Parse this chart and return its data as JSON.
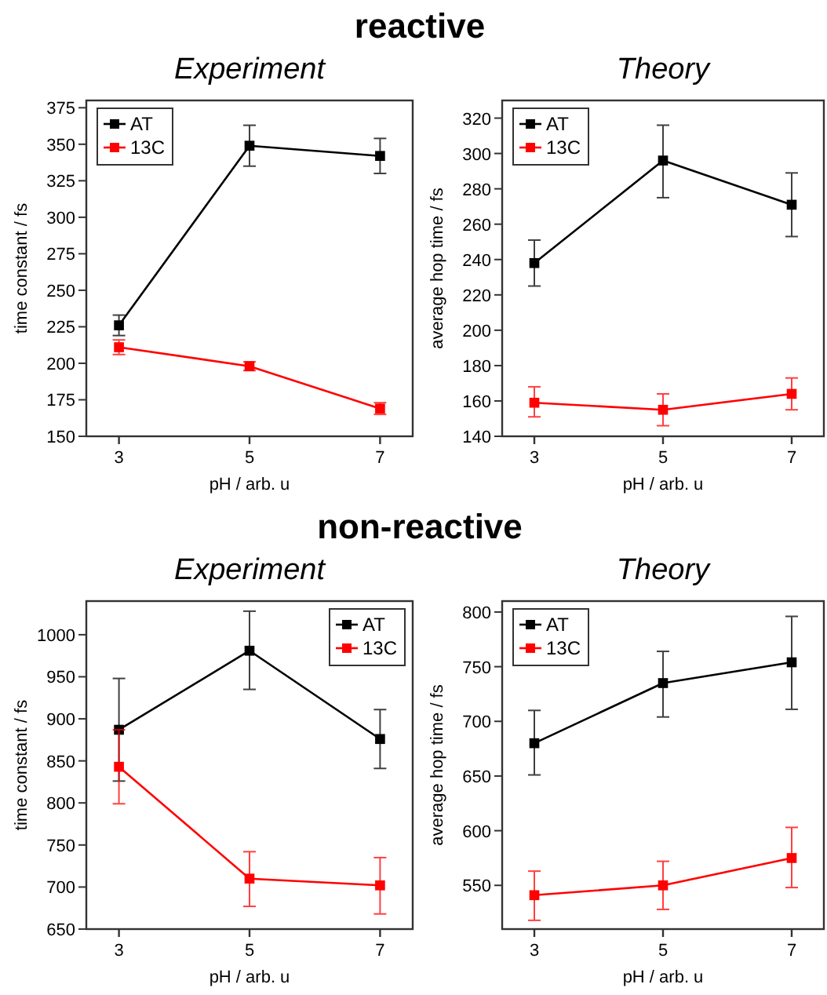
{
  "chart_data": [
    {
      "type": "line",
      "title": "Experiment",
      "annotations": [
        "reactive"
      ],
      "xlabel": "pH / arb. u",
      "ylabel": "time constant / fs",
      "x": [
        3,
        5,
        7
      ],
      "xlim": [
        2.5,
        7.5
      ],
      "xticks": [
        3,
        5,
        7
      ],
      "ylim": [
        150,
        380
      ],
      "yticks": [
        150,
        175,
        200,
        225,
        250,
        275,
        300,
        325,
        350,
        375
      ],
      "marker": "square",
      "legend": "top left",
      "series": [
        {
          "name": "AT",
          "color": "#000000",
          "values": [
            226,
            349,
            342
          ],
          "errors": [
            [
              219,
              233
            ],
            [
              335,
              363
            ],
            [
              330,
              354
            ]
          ]
        },
        {
          "name": "13C",
          "color": "#ff0000",
          "values": [
            211,
            198,
            169
          ],
          "errors": [
            [
              206,
              216
            ],
            [
              195,
              201
            ],
            [
              165,
              173
            ]
          ]
        }
      ]
    },
    {
      "type": "line",
      "title": "Theory",
      "xlabel": "pH / arb. u",
      "ylabel": "average hop time / fs",
      "x": [
        3,
        5,
        7
      ],
      "xlim": [
        2.5,
        7.5
      ],
      "xticks": [
        3,
        5,
        7
      ],
      "ylim": [
        140,
        330
      ],
      "yticks": [
        140,
        160,
        180,
        200,
        220,
        240,
        260,
        280,
        300,
        320
      ],
      "marker": "square",
      "legend": "top left",
      "series": [
        {
          "name": "AT",
          "color": "#000000",
          "values": [
            238,
            296,
            271
          ],
          "errors": [
            [
              225,
              251
            ],
            [
              275,
              316
            ],
            [
              253,
              289
            ]
          ]
        },
        {
          "name": "13C",
          "color": "#ff0000",
          "values": [
            159,
            155,
            164
          ],
          "errors": [
            [
              151,
              168
            ],
            [
              146,
              164
            ],
            [
              155,
              173
            ]
          ]
        }
      ]
    },
    {
      "type": "line",
      "title": "Experiment",
      "annotations": [
        "non-reactive"
      ],
      "xlabel": "pH / arb. u",
      "ylabel": "time constant / fs",
      "x": [
        3,
        5,
        7
      ],
      "xlim": [
        2.5,
        7.5
      ],
      "xticks": [
        3,
        5,
        7
      ],
      "ylim": [
        650,
        1040
      ],
      "yticks": [
        650,
        700,
        750,
        800,
        850,
        900,
        950,
        1000
      ],
      "marker": "square",
      "legend": "top right",
      "series": [
        {
          "name": "AT",
          "color": "#000000",
          "values": [
            887,
            981,
            876
          ],
          "errors": [
            [
              826,
              948
            ],
            [
              935,
              1028
            ],
            [
              841,
              911
            ]
          ]
        },
        {
          "name": "13C",
          "color": "#ff0000",
          "values": [
            843,
            710,
            702
          ],
          "errors": [
            [
              799,
              887
            ],
            [
              677,
              742
            ],
            [
              668,
              735
            ]
          ]
        }
      ]
    },
    {
      "type": "line",
      "title": "Theory",
      "xlabel": "pH / arb. u",
      "ylabel": "average hop time / fs",
      "x": [
        3,
        5,
        7
      ],
      "xlim": [
        2.5,
        7.5
      ],
      "xticks": [
        3,
        5,
        7
      ],
      "ylim": [
        510,
        810
      ],
      "yticks": [
        550,
        600,
        650,
        700,
        750,
        800
      ],
      "marker": "square",
      "legend": "top left",
      "series": [
        {
          "name": "AT",
          "color": "#000000",
          "values": [
            680,
            735,
            754
          ],
          "errors": [
            [
              651,
              710
            ],
            [
              704,
              764
            ],
            [
              711,
              796
            ]
          ]
        },
        {
          "name": "13C",
          "color": "#ff0000",
          "values": [
            541,
            550,
            575
          ],
          "errors": [
            [
              518,
              563
            ],
            [
              528,
              572
            ],
            [
              548,
              603
            ]
          ]
        }
      ]
    }
  ]
}
